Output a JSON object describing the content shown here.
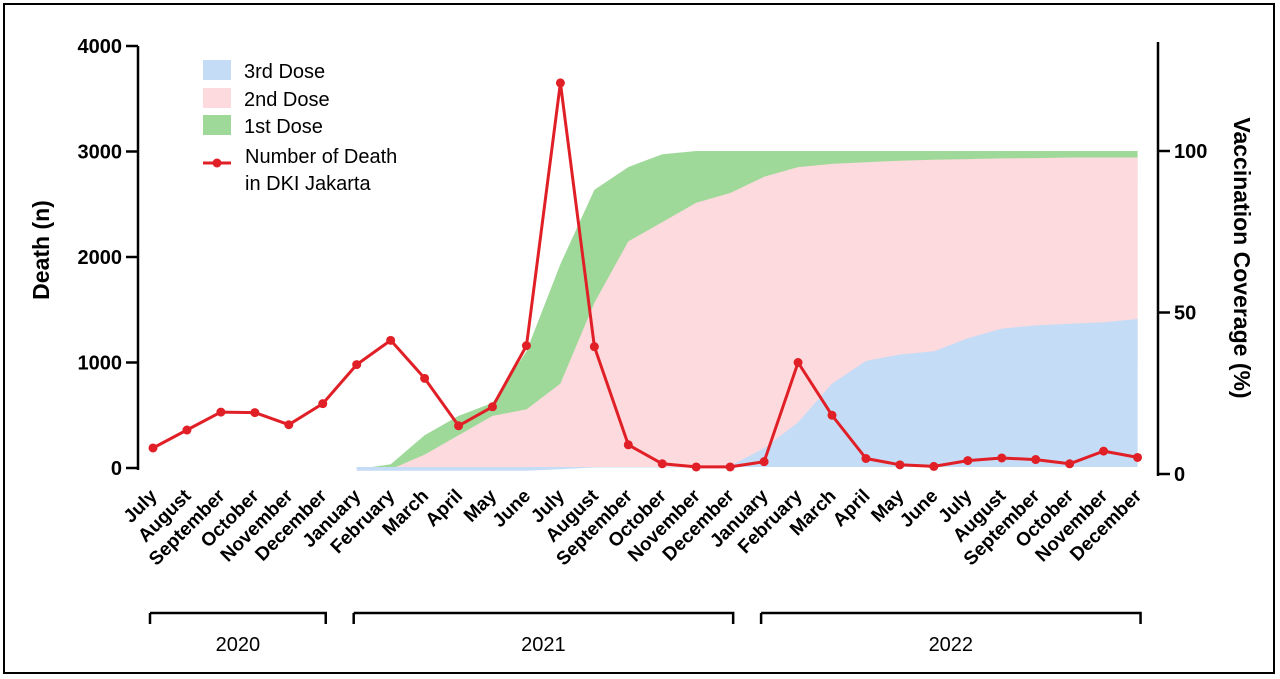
{
  "chart_data": {
    "type": "area",
    "x_months": [
      "July",
      "August",
      "September",
      "October",
      "November",
      "December",
      "January",
      "February",
      "March",
      "April",
      "May",
      "June",
      "July",
      "August",
      "September",
      "October",
      "November",
      "December",
      "January",
      "February",
      "March",
      "April",
      "May",
      "June",
      "July",
      "August",
      "September",
      "October",
      "November",
      "December"
    ],
    "years": [
      {
        "label": "2020",
        "from_index": 0,
        "to_index": 5
      },
      {
        "label": "2021",
        "from_index": 6,
        "to_index": 17
      },
      {
        "label": "2022",
        "from_index": 18,
        "to_index": 29
      }
    ],
    "ylabel_left": "Death (n)",
    "ylabel_right": "Vaccination Coverage (%)",
    "ylim_left": [
      0,
      4000
    ],
    "ylim_right": [
      0,
      130
    ],
    "yticks_left": [
      0,
      1000,
      2000,
      3000,
      4000
    ],
    "yticks_right": [
      0,
      50,
      100
    ],
    "legend_position": "top-left",
    "series": [
      {
        "name": "1st Dose",
        "axis": "right",
        "kind": "area",
        "color": "#9fd99a",
        "start_index": 6,
        "values": [
          1.5,
          3,
          12,
          18,
          22,
          38,
          65,
          88,
          95,
          99,
          100,
          100,
          100,
          100,
          100,
          100,
          100,
          100,
          100,
          100,
          100,
          100,
          100,
          100
        ]
      },
      {
        "name": "2nd Dose",
        "axis": "right",
        "kind": "area",
        "color": "#fddadd",
        "start_index": 6,
        "values": [
          1.5,
          1.5,
          6,
          12,
          18,
          20,
          28,
          53,
          72,
          78,
          84,
          87,
          92,
          95,
          96,
          96.5,
          97,
          97.3,
          97.5,
          97.7,
          97.8,
          98,
          98,
          98
        ]
      },
      {
        "name": "3rd Dose",
        "axis": "right",
        "kind": "area",
        "color": "#c5dcf6",
        "start_index": 6,
        "values": [
          1,
          1,
          1,
          1,
          1,
          1,
          1.5,
          2,
          2,
          2,
          2,
          2.5,
          8,
          16,
          28,
          35,
          37,
          38,
          42,
          45,
          46,
          46.5,
          47,
          48
        ]
      },
      {
        "name": "Number of Death\nin DKI Jakarta",
        "axis": "left",
        "kind": "line",
        "color": "#e01f26",
        "start_index": 0,
        "values": [
          190,
          360,
          530,
          525,
          410,
          610,
          980,
          1210,
          850,
          400,
          580,
          1160,
          3650,
          1150,
          220,
          40,
          10,
          10,
          60,
          1000,
          500,
          90,
          30,
          15,
          70,
          95,
          80,
          40,
          160,
          100
        ]
      }
    ]
  }
}
